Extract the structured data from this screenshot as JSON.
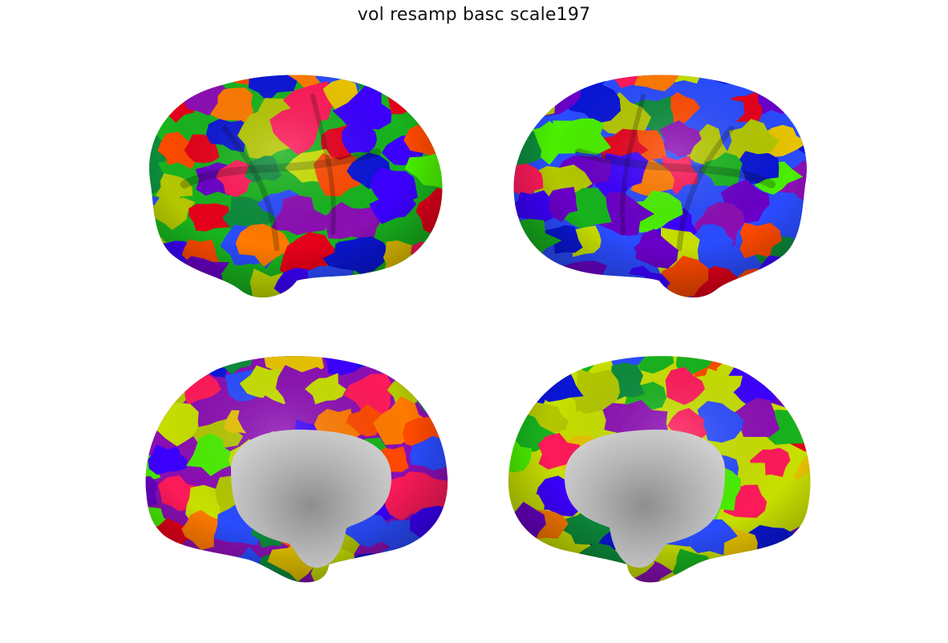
{
  "figure": {
    "title": "vol resamp basc scale197"
  },
  "views": [
    {
      "hemisphere": "left",
      "view": "lateral"
    },
    {
      "hemisphere": "right",
      "view": "lateral"
    },
    {
      "hemisphere": "left",
      "view": "medial"
    },
    {
      "hemisphere": "right",
      "view": "medial"
    }
  ],
  "colors": {
    "parcel_palette": [
      "#e6001a",
      "#0a16d6",
      "#6a00c8",
      "#18b41e",
      "#e8c400",
      "#ff7a00",
      "#8c0fb4",
      "#c8e000",
      "#0c8c3c",
      "#ff1a5a",
      "#4af000",
      "#2a4cff",
      "#b4c800",
      "#ff4a00",
      "#3c00ff"
    ],
    "medial_wall": "#b0b0b0",
    "background": "#ffffff"
  }
}
